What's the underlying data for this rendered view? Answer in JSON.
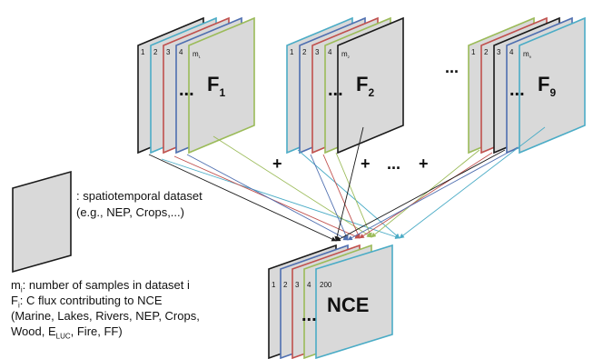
{
  "colors": {
    "black": "#1a1a1a",
    "blue": "#4f6fb0",
    "red": "#c0504d",
    "cyan": "#4bacc6",
    "green": "#9bbb59",
    "panel_fill": "#d9d9d9"
  },
  "stacks": {
    "f1": {
      "indices": [
        "1",
        "2",
        "3",
        "4"
      ],
      "m_label": "m",
      "m_sub": "1",
      "f_label": "F",
      "f_sub": "1",
      "ellipsis": "..."
    },
    "f2": {
      "indices": [
        "1",
        "2",
        "3",
        "4"
      ],
      "m_label": "m",
      "m_sub": "2",
      "f_label": "F",
      "f_sub": "2",
      "ellipsis": "..."
    },
    "f9": {
      "indices": [
        "1",
        "2",
        "3",
        "4"
      ],
      "m_label": "m",
      "m_sub": "9",
      "f_label": "F",
      "f_sub": "9",
      "ellipsis": "..."
    },
    "nce": {
      "indices": [
        "1",
        "2",
        "3",
        "4"
      ],
      "m_label": "200",
      "title": "NCE",
      "ellipsis": "..."
    }
  },
  "operators": {
    "plus": "+",
    "ellipsis": "..."
  },
  "legend": {
    "icon_label": ": spatiotemporal dataset",
    "icon_sublabel": "(e.g., NEP, Crops,...)",
    "m_prefix": "m",
    "m_sub": "i",
    "m_desc": ": number of samples in dataset i",
    "f_prefix": "F",
    "f_sub": "i",
    "f_desc": ": C flux contributing to NCE",
    "list_line1": "(Marine, Lakes, Rivers, NEP, Crops,",
    "list_line2_a": "Wood, E",
    "list_line2_sub": "LUC",
    "list_line2_b": ", Fire, FF)"
  }
}
